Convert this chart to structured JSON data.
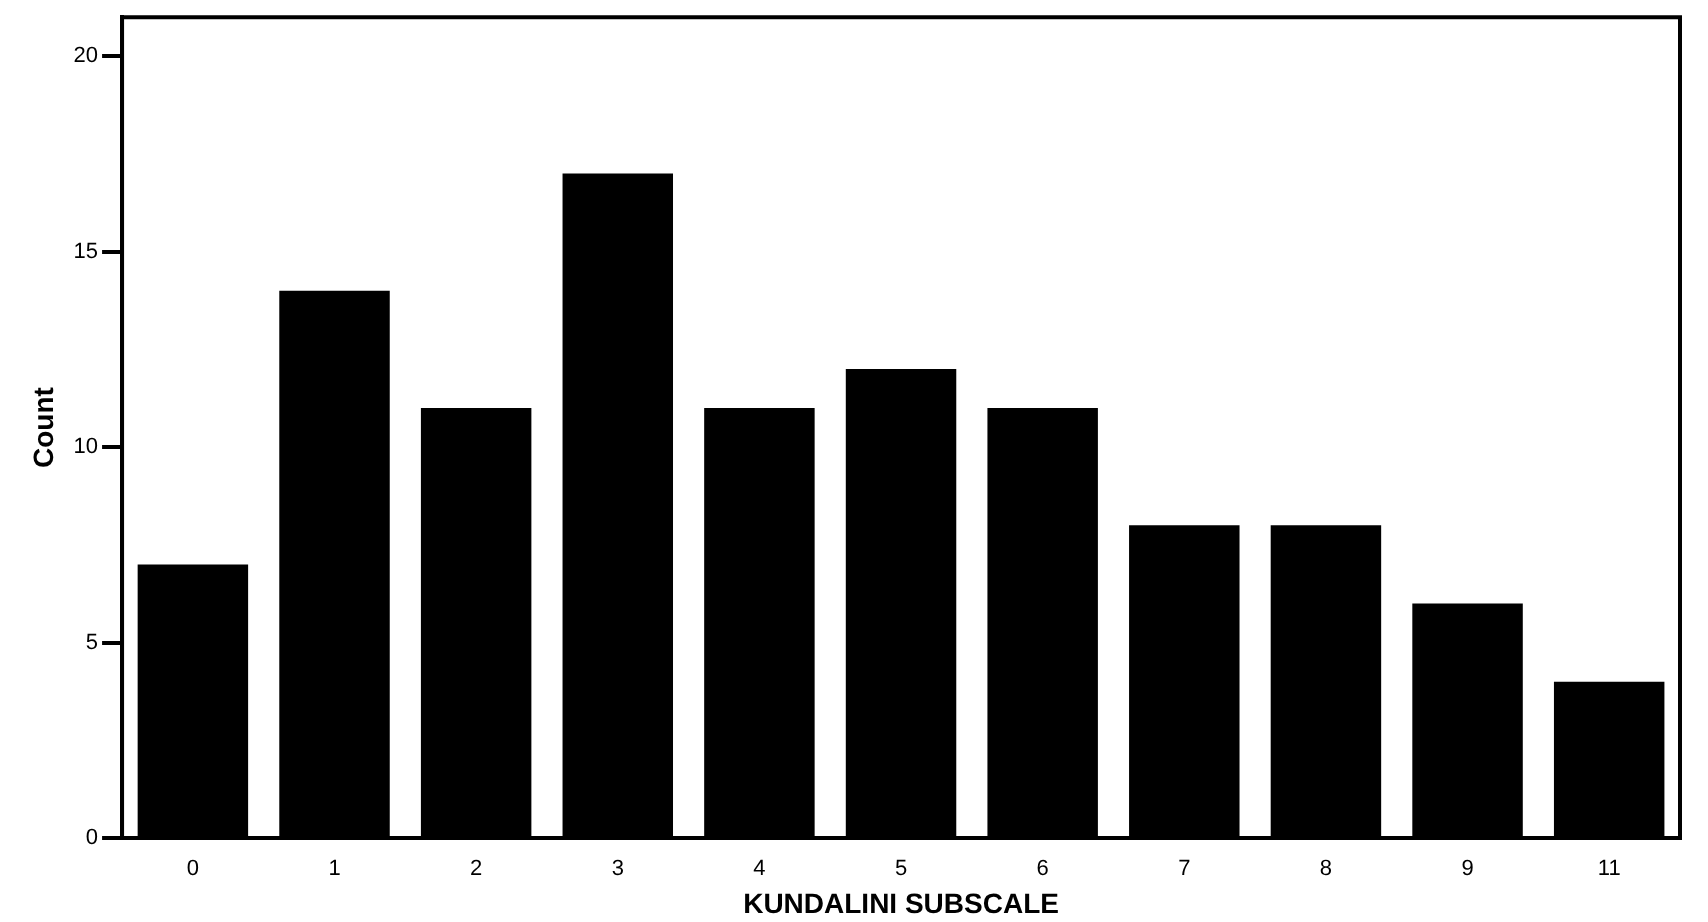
{
  "chart_data": {
    "type": "bar",
    "xlabel": "KUNDALINI SUBSCALE",
    "ylabel": "Count",
    "categories": [
      "0",
      "1",
      "2",
      "3",
      "4",
      "5",
      "6",
      "7",
      "8",
      "9",
      "11"
    ],
    "values": [
      7,
      14,
      11,
      17,
      11,
      12,
      11,
      8,
      8,
      6,
      4
    ],
    "color": "#000000",
    "ylim": [
      0,
      21
    ],
    "yticks": [
      0,
      5,
      10,
      15,
      20
    ],
    "grid": false,
    "legend": false
  }
}
